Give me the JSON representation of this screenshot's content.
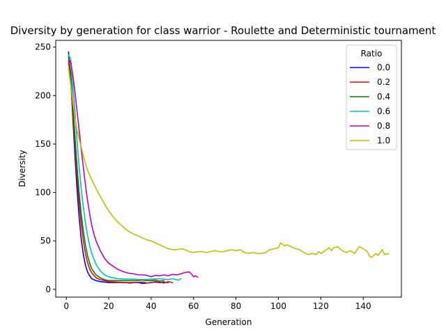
{
  "chart_data": {
    "type": "line",
    "title": "Diversity by generation for class warrior - Roulette and Deterministic tournament",
    "xlabel": "Generation",
    "ylabel": "Diversity",
    "xlim": [
      -5,
      158
    ],
    "ylim": [
      -8,
      257
    ],
    "xticks": [
      0,
      20,
      40,
      60,
      80,
      100,
      120,
      140
    ],
    "yticks": [
      0,
      50,
      100,
      150,
      200,
      250
    ],
    "grid": false,
    "legend": {
      "title": "Ratio",
      "placement": "top-right"
    },
    "series": [
      {
        "name": "0.0",
        "color": "#0000ff",
        "points": [
          [
            1,
            245
          ],
          [
            2,
            220
          ],
          [
            3,
            180
          ],
          [
            4,
            140
          ],
          [
            5,
            105
          ],
          [
            6,
            75
          ],
          [
            7,
            52
          ],
          [
            8,
            36
          ],
          [
            9,
            25
          ],
          [
            10,
            18
          ],
          [
            11,
            14
          ],
          [
            12,
            11
          ],
          [
            14,
            9
          ],
          [
            16,
            8
          ],
          [
            18,
            7.5
          ],
          [
            20,
            7
          ],
          [
            24,
            7
          ],
          [
            28,
            7
          ],
          [
            30,
            6.5
          ],
          [
            32,
            7
          ],
          [
            34,
            7
          ],
          [
            36,
            6
          ],
          [
            38,
            6.5
          ],
          [
            40,
            7
          ],
          [
            42,
            7.5
          ],
          [
            44,
            7
          ],
          [
            46,
            7.5
          ],
          [
            48,
            7
          ]
        ]
      },
      {
        "name": "0.2",
        "color": "#ff0000",
        "points": [
          [
            1,
            236
          ],
          [
            2,
            215
          ],
          [
            3,
            185
          ],
          [
            4,
            150
          ],
          [
            5,
            118
          ],
          [
            6,
            90
          ],
          [
            7,
            68
          ],
          [
            8,
            50
          ],
          [
            9,
            37
          ],
          [
            10,
            28
          ],
          [
            11,
            21
          ],
          [
            12,
            17
          ],
          [
            14,
            12
          ],
          [
            16,
            10
          ],
          [
            18,
            9
          ],
          [
            20,
            8
          ],
          [
            24,
            7.5
          ],
          [
            28,
            7
          ],
          [
            32,
            7
          ],
          [
            36,
            7.5
          ],
          [
            38,
            6.5
          ],
          [
            40,
            7
          ],
          [
            42,
            8
          ],
          [
            44,
            7.5
          ],
          [
            46,
            6.5
          ],
          [
            48,
            8
          ],
          [
            50,
            7
          ]
        ]
      },
      {
        "name": "0.4",
        "color": "#008000",
        "points": [
          [
            1,
            240
          ],
          [
            2,
            225
          ],
          [
            3,
            195
          ],
          [
            4,
            160
          ],
          [
            5,
            128
          ],
          [
            6,
            100
          ],
          [
            7,
            78
          ],
          [
            8,
            60
          ],
          [
            9,
            46
          ],
          [
            10,
            35
          ],
          [
            11,
            27
          ],
          [
            12,
            21
          ],
          [
            14,
            15
          ],
          [
            16,
            12
          ],
          [
            18,
            10
          ],
          [
            20,
            9
          ],
          [
            24,
            9
          ],
          [
            28,
            9
          ],
          [
            32,
            9
          ],
          [
            36,
            9.5
          ],
          [
            38,
            9
          ],
          [
            40,
            9
          ],
          [
            42,
            9.5
          ],
          [
            44,
            8.5
          ],
          [
            46,
            9
          ]
        ]
      },
      {
        "name": "0.6",
        "color": "#00bfbf",
        "points": [
          [
            1,
            242
          ],
          [
            2,
            238
          ],
          [
            3,
            215
          ],
          [
            4,
            185
          ],
          [
            5,
            155
          ],
          [
            6,
            127
          ],
          [
            7,
            104
          ],
          [
            8,
            85
          ],
          [
            9,
            69
          ],
          [
            10,
            56
          ],
          [
            11,
            45
          ],
          [
            12,
            37
          ],
          [
            14,
            26
          ],
          [
            16,
            19
          ],
          [
            18,
            15
          ],
          [
            20,
            13
          ],
          [
            22,
            12
          ],
          [
            24,
            11
          ],
          [
            28,
            10.5
          ],
          [
            32,
            10.5
          ],
          [
            36,
            10
          ],
          [
            40,
            10.5
          ],
          [
            44,
            11
          ],
          [
            46,
            10.5
          ],
          [
            48,
            10
          ],
          [
            50,
            11
          ],
          [
            52,
            10
          ],
          [
            53,
            9.5
          ],
          [
            54,
            11
          ]
        ]
      },
      {
        "name": "0.8",
        "color": "#bf00bf",
        "points": [
          [
            1,
            232
          ],
          [
            2,
            236
          ],
          [
            3,
            222
          ],
          [
            4,
            205
          ],
          [
            5,
            185
          ],
          [
            6,
            165
          ],
          [
            7,
            145
          ],
          [
            8,
            126
          ],
          [
            9,
            108
          ],
          [
            10,
            92
          ],
          [
            11,
            78
          ],
          [
            12,
            66
          ],
          [
            13,
            57
          ],
          [
            14,
            50
          ],
          [
            16,
            40
          ],
          [
            18,
            32
          ],
          [
            20,
            27
          ],
          [
            22,
            24
          ],
          [
            24,
            21
          ],
          [
            26,
            19
          ],
          [
            28,
            17.5
          ],
          [
            30,
            16.5
          ],
          [
            32,
            16
          ],
          [
            34,
            15
          ],
          [
            36,
            15
          ],
          [
            38,
            14.5
          ],
          [
            40,
            13
          ],
          [
            42,
            14.5
          ],
          [
            44,
            14
          ],
          [
            46,
            15
          ],
          [
            48,
            14
          ],
          [
            50,
            15.5
          ],
          [
            52,
            15
          ],
          [
            54,
            16
          ],
          [
            56,
            17.5
          ],
          [
            58,
            18
          ],
          [
            59,
            16
          ],
          [
            60,
            13
          ],
          [
            61,
            14
          ],
          [
            62,
            12.5
          ]
        ]
      },
      {
        "name": "1.0",
        "color": "#bfbf00",
        "points": [
          [
            1,
            228
          ],
          [
            2,
            212
          ],
          [
            3,
            195
          ],
          [
            4,
            178
          ],
          [
            5,
            165
          ],
          [
            6,
            155
          ],
          [
            7,
            147
          ],
          [
            8,
            138
          ],
          [
            9,
            130
          ],
          [
            10,
            123
          ],
          [
            12,
            113
          ],
          [
            14,
            104
          ],
          [
            16,
            96
          ],
          [
            18,
            88
          ],
          [
            20,
            81
          ],
          [
            22,
            75
          ],
          [
            24,
            70
          ],
          [
            26,
            66
          ],
          [
            28,
            62
          ],
          [
            30,
            59
          ],
          [
            32,
            57
          ],
          [
            34,
            55
          ],
          [
            36,
            53
          ],
          [
            38,
            51
          ],
          [
            40,
            50
          ],
          [
            42,
            48
          ],
          [
            44,
            46
          ],
          [
            46,
            44
          ],
          [
            48,
            42
          ],
          [
            50,
            41
          ],
          [
            52,
            41
          ],
          [
            54,
            42
          ],
          [
            56,
            41
          ],
          [
            58,
            39
          ],
          [
            60,
            38
          ],
          [
            62,
            39
          ],
          [
            64,
            39
          ],
          [
            66,
            38
          ],
          [
            68,
            39
          ],
          [
            70,
            40
          ],
          [
            72,
            39
          ],
          [
            74,
            39
          ],
          [
            76,
            40
          ],
          [
            78,
            41
          ],
          [
            80,
            40
          ],
          [
            82,
            41
          ],
          [
            84,
            38
          ],
          [
            86,
            37
          ],
          [
            88,
            38
          ],
          [
            90,
            37
          ],
          [
            92,
            37
          ],
          [
            94,
            38
          ],
          [
            96,
            41
          ],
          [
            98,
            42
          ],
          [
            100,
            43
          ],
          [
            101,
            48
          ],
          [
            103,
            45
          ],
          [
            104,
            46
          ],
          [
            106,
            44
          ],
          [
            108,
            42
          ],
          [
            110,
            41
          ],
          [
            112,
            38
          ],
          [
            114,
            36
          ],
          [
            116,
            37
          ],
          [
            118,
            36
          ],
          [
            119,
            39
          ],
          [
            120,
            37
          ],
          [
            122,
            40
          ],
          [
            124,
            43
          ],
          [
            125,
            40
          ],
          [
            126,
            43
          ],
          [
            128,
            44
          ],
          [
            130,
            40
          ],
          [
            132,
            38
          ],
          [
            134,
            40
          ],
          [
            136,
            37
          ],
          [
            138,
            44
          ],
          [
            140,
            42
          ],
          [
            142,
            39
          ],
          [
            143,
            34
          ],
          [
            144,
            33
          ],
          [
            146,
            37
          ],
          [
            147,
            35
          ],
          [
            149,
            41
          ],
          [
            150,
            36
          ],
          [
            152,
            37
          ]
        ]
      }
    ]
  }
}
